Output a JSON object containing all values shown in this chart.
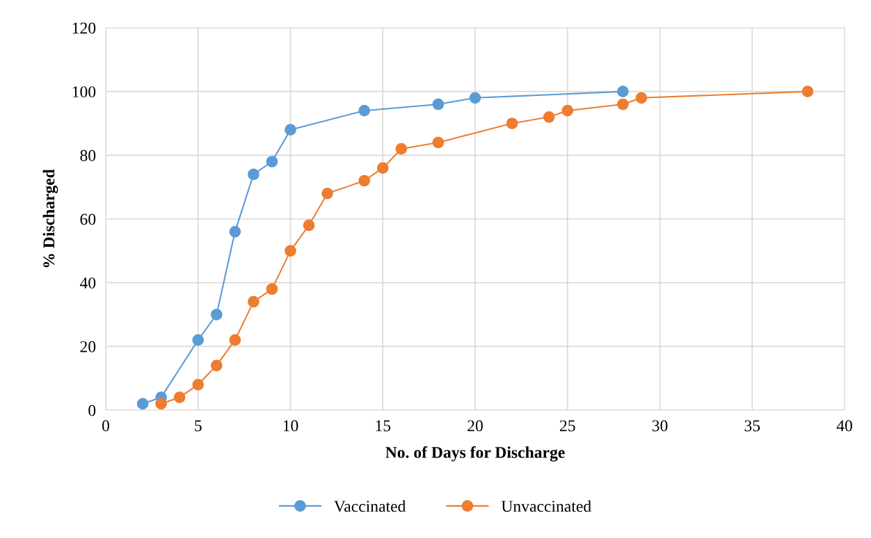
{
  "chart_data": {
    "type": "line",
    "xlabel": "No. of Days for Discharge",
    "ylabel": "% Discharged",
    "xlim": [
      0,
      40
    ],
    "xticks": [
      0,
      5,
      10,
      15,
      20,
      25,
      30,
      35,
      40
    ],
    "ylim": [
      0,
      120
    ],
    "yticks": [
      0,
      20,
      40,
      60,
      80,
      100,
      120
    ],
    "grid": true,
    "legend": "bottom",
    "marker": "circle",
    "line_style": "solid",
    "series": [
      {
        "name": "Vaccinated",
        "color": "#5b9bd5",
        "x": [
          2,
          3,
          5,
          6,
          7,
          8,
          9,
          10,
          14,
          18,
          20,
          28
        ],
        "values": [
          2,
          4,
          22,
          30,
          56,
          74,
          78,
          88,
          94,
          96,
          98,
          100
        ]
      },
      {
        "name": "Unvaccinated",
        "color": "#ed7d31",
        "x": [
          3,
          4,
          5,
          6,
          7,
          8,
          9,
          10,
          11,
          12,
          14,
          15,
          16,
          18,
          22,
          24,
          25,
          28,
          29,
          38
        ],
        "values": [
          2,
          4,
          8,
          14,
          22,
          34,
          38,
          50,
          58,
          68,
          72,
          76,
          82,
          84,
          90,
          92,
          94,
          96,
          98,
          100
        ]
      }
    ]
  }
}
